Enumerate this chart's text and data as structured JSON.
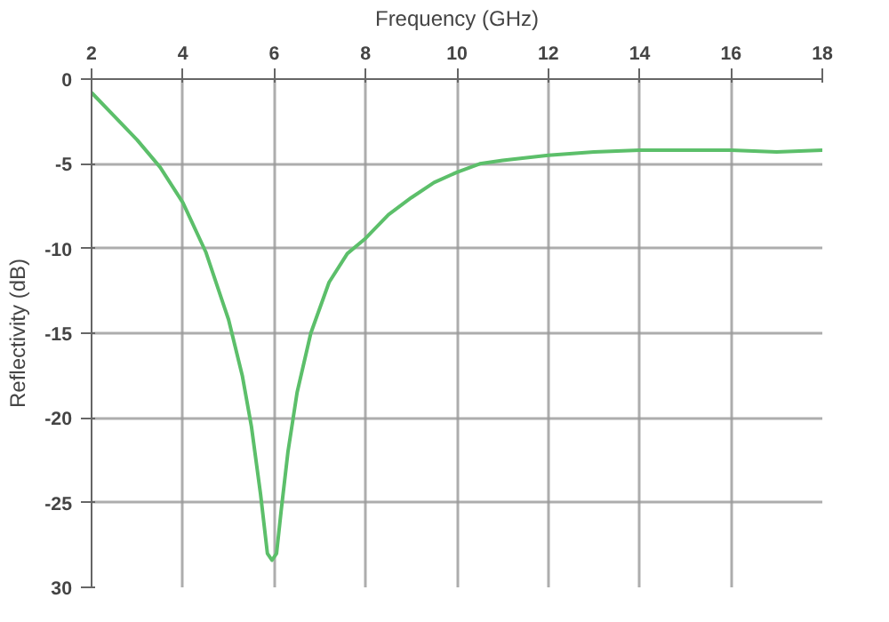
{
  "chart_data": {
    "type": "line",
    "xlabel": "Frequency (GHz)",
    "ylabel": "Reflectivity (dB)",
    "xlim": [
      2,
      18
    ],
    "xticks": [
      2,
      4,
      6,
      8,
      10,
      12,
      14,
      16,
      18
    ],
    "ylim": [
      -30,
      0
    ],
    "yticks": [
      0,
      -5,
      -10,
      -15,
      -20,
      -25,
      {
        "value": -30,
        "label": "30"
      }
    ],
    "grid": true,
    "series": [
      {
        "color": "#5cbf6a",
        "x": [
          2,
          2.5,
          3,
          3.5,
          4,
          4.5,
          5,
          5.3,
          5.5,
          5.7,
          5.85,
          5.95,
          6.05,
          6.15,
          6.3,
          6.5,
          6.8,
          7.2,
          7.6,
          8,
          8.5,
          9,
          9.5,
          10,
          10.5,
          11,
          12,
          13,
          14,
          16,
          17,
          18
        ],
        "values": [
          -0.8,
          -2.2,
          -3.6,
          -5.2,
          -7.3,
          -10.2,
          -14.2,
          -17.5,
          -20.5,
          -24.5,
          -28.0,
          -28.4,
          -28.0,
          -25.5,
          -22,
          -18.5,
          -15,
          -12,
          -10.3,
          -9.4,
          -8.0,
          -7.0,
          -6.1,
          -5.5,
          -5.0,
          -4.8,
          -4.5,
          -4.3,
          -4.2,
          -4.2,
          -4.3,
          -4.2
        ]
      }
    ]
  }
}
